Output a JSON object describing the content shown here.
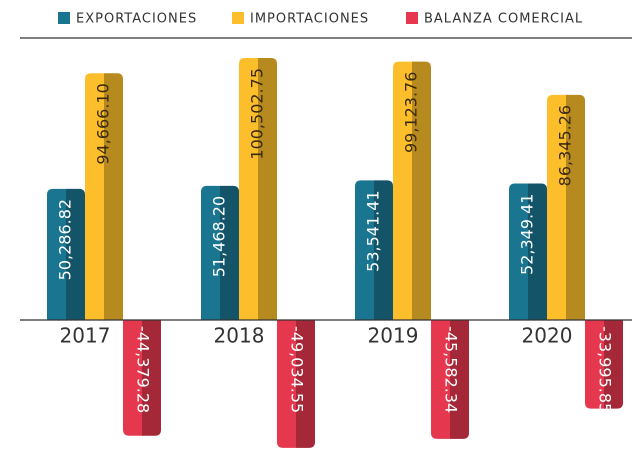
{
  "chart_data": {
    "type": "bar",
    "categories": [
      "2017",
      "2018",
      "2019",
      "2020"
    ],
    "series": [
      {
        "name": "EXPORTACIONES",
        "color": "#1a7590",
        "values": [
          50286.82,
          51468.2,
          53541.41,
          52349.41
        ],
        "value_labels": [
          "50,286.82",
          "51,468.20",
          "53,541.41",
          "52,349.41"
        ]
      },
      {
        "name": "IMPORTACIONES",
        "color": "#fcbf2b",
        "values": [
          94666.1,
          100502.75,
          99123.76,
          86345.26
        ],
        "value_labels": [
          "94,666.10",
          "100,502.75",
          "99,123.76",
          "86,345.26"
        ]
      },
      {
        "name": "BALANZA COMERCIAL",
        "color": "#e5384f",
        "values": [
          -44379.28,
          -49034.55,
          -45582.34,
          -33995.85
        ],
        "value_labels": [
          "-44,379.28",
          "-49,034.55",
          "-45,582.34",
          "-33,995.85"
        ]
      }
    ],
    "legend": "top"
  }
}
